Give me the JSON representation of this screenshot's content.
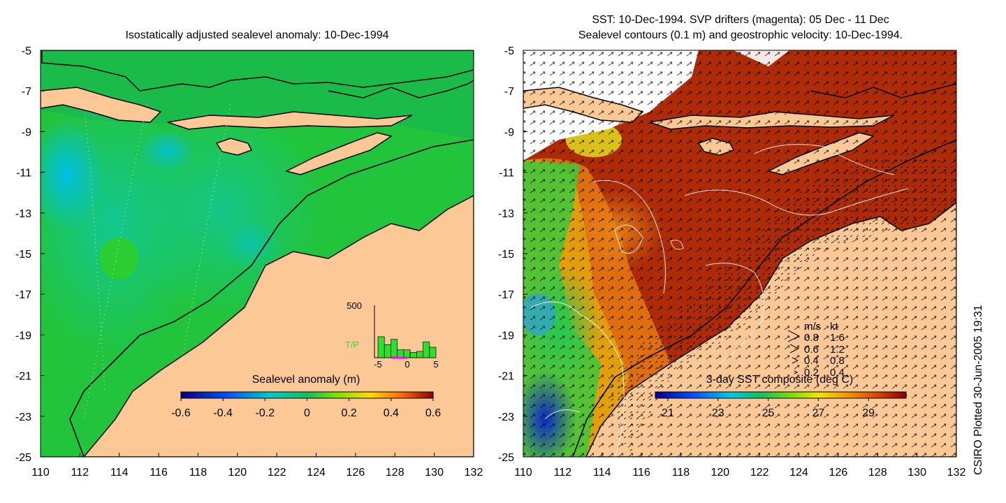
{
  "left_panel": {
    "title": "Isostatically adjusted sealevel anomaly: 10-Dec-1994",
    "colorbar": {
      "label": "Sealevel anomaly (m)",
      "ticks": [
        "-0.6",
        "-0.4",
        "-0.2",
        "0",
        "0.2",
        "0.4",
        "0.6"
      ],
      "range": [
        -0.6,
        0.6
      ]
    },
    "inset": {
      "y_label": "500",
      "series_label": "T/P",
      "x_ticks": [
        "-5",
        "0",
        "5"
      ],
      "bar_values": [
        0.4,
        0.25,
        0.35,
        0.15,
        0.15,
        0.1,
        0.12,
        0.3,
        0.2
      ],
      "colors": {
        "bars": "#2ee02e",
        "marker": "#ff00ff",
        "label": "#33dd33"
      }
    }
  },
  "right_panel": {
    "title_line1": "SST: 10-Dec-1994. SVP drifters (magenta): 05 Dec - 11 Dec",
    "title_line2": "Sealevel contours (0.1 m) and geostrophic velocity: 10-Dec-1994.",
    "colorbar": {
      "label": "3-day SST composite (deg C)",
      "ticks": [
        "21",
        "23",
        "25",
        "27",
        "29"
      ],
      "range": [
        20.5,
        30.5
      ]
    },
    "velocity_legend": {
      "header_ms": "m/s",
      "header_kt": "kt",
      "rows": [
        {
          "ms": "0.8",
          "kt": "1.6"
        },
        {
          "ms": "0.6",
          "kt": "1.2"
        },
        {
          "ms": "0.4",
          "kt": "0.8"
        },
        {
          "ms": "0.2",
          "kt": "0.4"
        }
      ]
    }
  },
  "axes": {
    "x_ticks": [
      "110",
      "112",
      "114",
      "116",
      "118",
      "120",
      "122",
      "124",
      "126",
      "128",
      "130",
      "132"
    ],
    "y_ticks": [
      "-5",
      "-7",
      "-9",
      "-11",
      "-13",
      "-15",
      "-17",
      "-19",
      "-21",
      "-23",
      "-25"
    ],
    "lon_range": [
      110,
      132
    ],
    "lat_range": [
      -25,
      -5
    ]
  },
  "credit": "CSIRO Plotted 30-Jun-2005 19:31",
  "colors": {
    "land": "#fbc896",
    "sea_anomaly": "#1ec83c",
    "sst_warm": "#a01e00"
  }
}
